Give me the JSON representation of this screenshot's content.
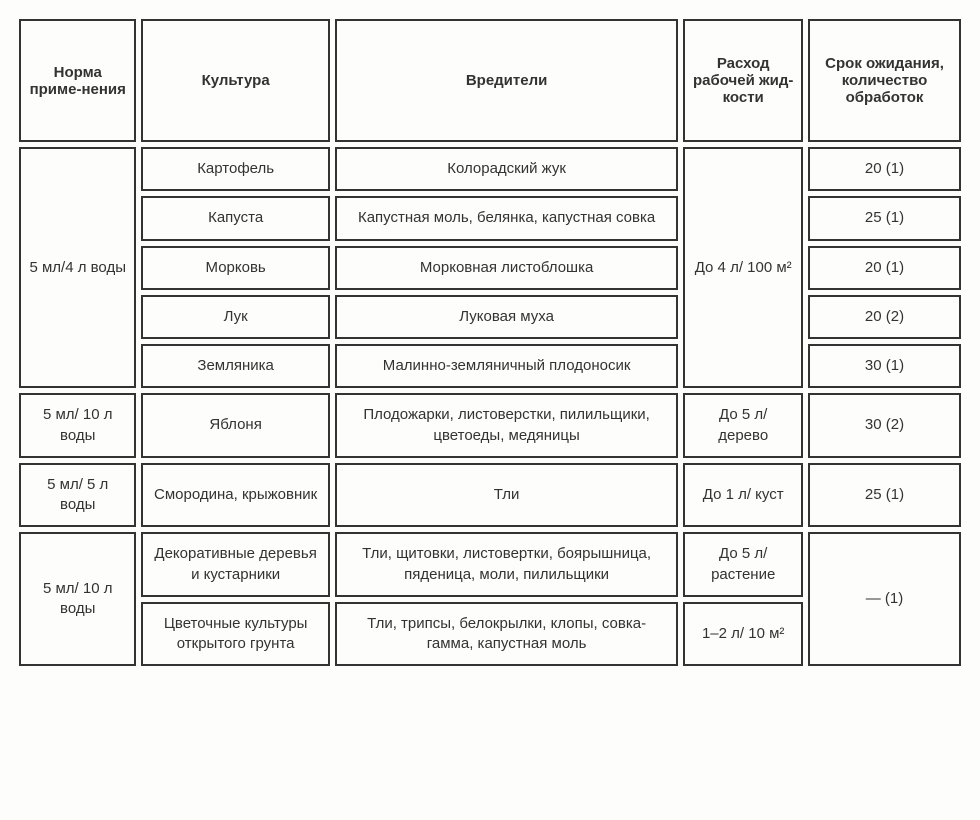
{
  "table": {
    "headers": {
      "norm": "Норма приме-нения",
      "culture": "Культура",
      "pests": "Вредители",
      "consumption": "Расход рабочей жид-кости",
      "waiting": "Срок ожидания, количество обработок"
    },
    "rows": {
      "r1": {
        "norm": "5 мл/4 л воды",
        "culture": "Картофель",
        "pests": "Колорадский жук",
        "consumption": "До 4 л/ 100 м²",
        "waiting": "20 (1)"
      },
      "r2": {
        "culture": "Капуста",
        "pests": "Капустная моль, белянка, капустная совка",
        "waiting": "25 (1)"
      },
      "r3": {
        "culture": "Морковь",
        "pests": "Морковная листоблошка",
        "waiting": "20 (1)"
      },
      "r4": {
        "culture": "Лук",
        "pests": "Луковая муха",
        "waiting": "20 (2)"
      },
      "r5": {
        "culture": "Земляника",
        "pests": "Малинно-земляничный плодоносик",
        "waiting": "30 (1)"
      },
      "r6": {
        "norm": "5 мл/ 10 л воды",
        "culture": "Яблоня",
        "pests": "Плодожарки, листоверстки, пилильщики, цветоеды, медяницы",
        "consumption": "До 5 л/ дерево",
        "waiting": "30 (2)"
      },
      "r7": {
        "norm": "5 мл/ 5 л воды",
        "culture": "Смородина, крыжовник",
        "pests": "Тли",
        "consumption": "До 1 л/ куст",
        "waiting": "25 (1)"
      },
      "r8": {
        "norm": "5 мл/ 10 л воды",
        "culture": "Декоративные деревья и кустарники",
        "pests": "Тли, щитовки, листовертки, боярышница, пяденица, моли, пилильщики",
        "consumption": "До 5 л/ растение",
        "waiting": "— (1)"
      },
      "r9": {
        "culture": "Цветочные культуры открытого грунта",
        "pests": "Тли, трипсы, белокрылки, клопы, совка-гамма, капустная моль",
        "consumption": "1–2 л/ 10 м²"
      }
    }
  }
}
